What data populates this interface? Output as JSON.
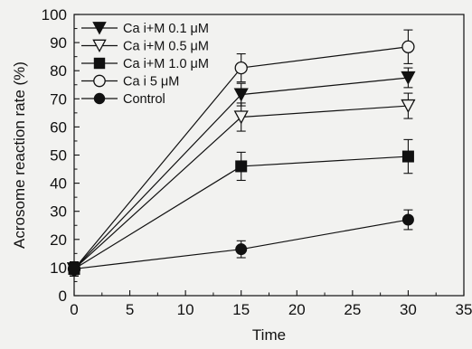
{
  "chart_data": {
    "type": "line",
    "xlabel": "Time",
    "ylabel": "Acrosome reaction rate (%)",
    "xlim": [
      0,
      35
    ],
    "ylim": [
      0,
      100
    ],
    "xticks": [
      0,
      5,
      10,
      15,
      20,
      25,
      30,
      35
    ],
    "yticks": [
      0,
      10,
      20,
      30,
      40,
      50,
      60,
      70,
      80,
      90,
      100
    ],
    "grid": false,
    "legend_position": "top-left",
    "x": [
      0,
      15,
      30
    ],
    "series": [
      {
        "name": "Ca i+M 0.1 μM",
        "marker": "triangle-down-filled",
        "values": [
          9.5,
          71.5,
          77.5
        ],
        "errors": [
          2.5,
          4.0,
          3.5
        ]
      },
      {
        "name": "Ca i+M 0.5 μM",
        "marker": "triangle-down-open",
        "values": [
          9.5,
          63.5,
          67.5
        ],
        "errors": [
          2.5,
          5.0,
          4.5
        ]
      },
      {
        "name": "Ca i+M 1.0 μM",
        "marker": "square-filled",
        "values": [
          9.5,
          46.0,
          49.5
        ],
        "errors": [
          2.5,
          5.0,
          6.0
        ]
      },
      {
        "name": "Ca i 5 μM",
        "marker": "circle-open",
        "values": [
          9.5,
          81.0,
          88.5
        ],
        "errors": [
          2.5,
          5.0,
          6.0
        ]
      },
      {
        "name": "Control",
        "marker": "circle-filled",
        "values": [
          9.5,
          16.5,
          27.0
        ],
        "errors": [
          2.5,
          3.0,
          3.5
        ]
      }
    ]
  }
}
